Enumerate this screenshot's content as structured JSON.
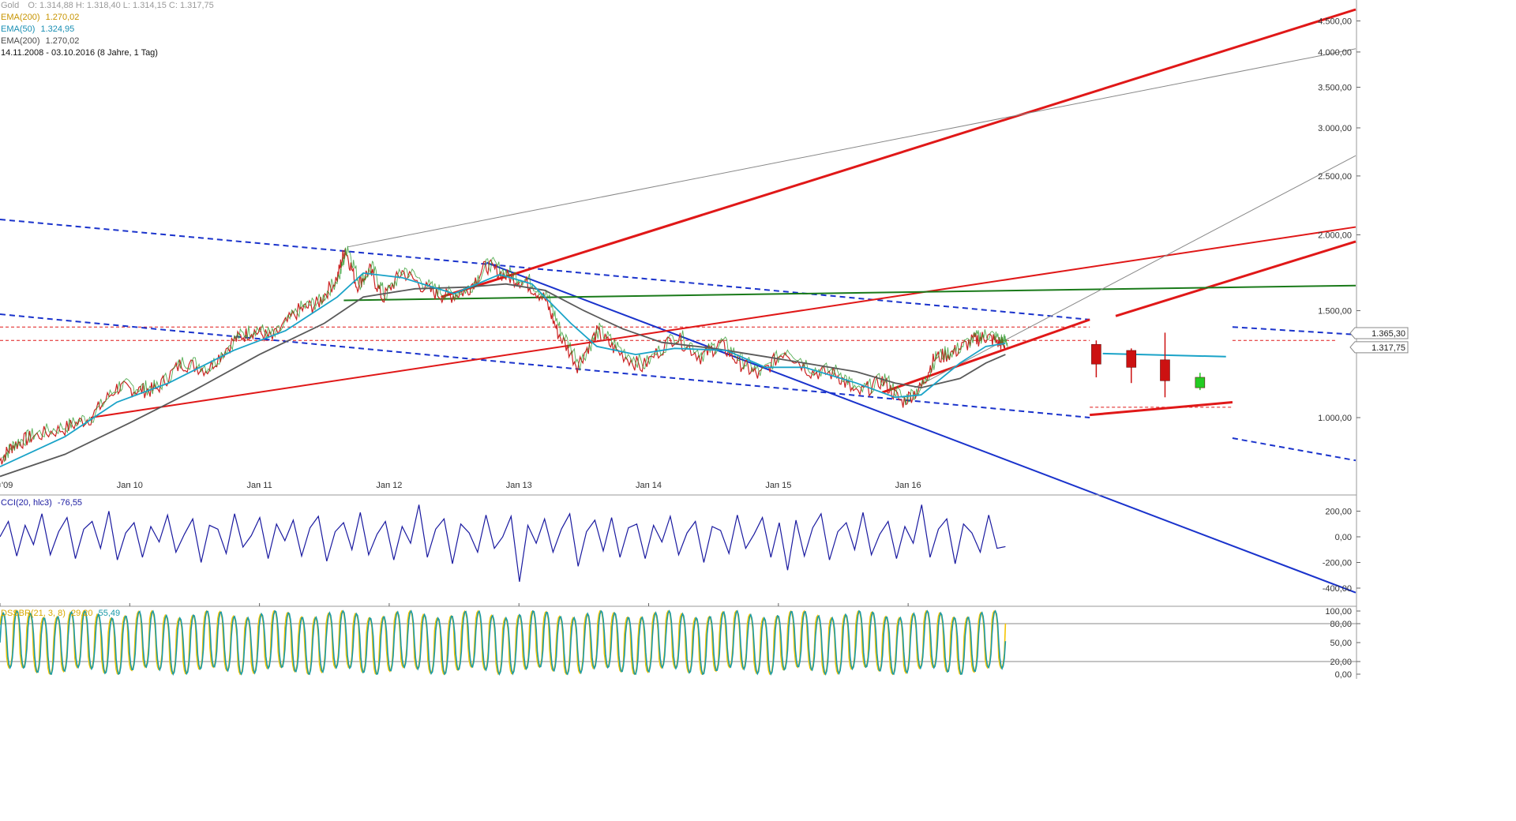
{
  "header": {
    "line1": {
      "symbol": "Gold",
      "ohlc": "O: 1.314,88   H: 1.318,40   L: 1.314,15   C: 1.317,75"
    },
    "line2": {
      "label": "EMA(200)",
      "value": "1.270,02",
      "color": "#f5b800"
    },
    "line3": {
      "label": "EMA(50)",
      "value": "1.324,95",
      "color": "#1aa3c8"
    },
    "line4": {
      "label": "EMA(200)",
      "value": "1.270,02",
      "color": "#5a5a5a"
    },
    "line5": {
      "text": "14.11.2008 - 03.10.2016 (8 Jahre, 1 Tag)"
    }
  },
  "indicators": {
    "cci": {
      "label": "CCI(20, hlc3)",
      "value": "-76,55",
      "color": "#1a1aa0"
    },
    "dssbr": {
      "label": "DSSBR(21, 3, 8)",
      "value1": "29,20",
      "value2": "55,49",
      "color1": "#f5c400",
      "color2": "#1a9aa8"
    }
  },
  "chart_data": [
    {
      "type": "line",
      "panel": "price",
      "scale": "log",
      "ylim": [
        780,
        4700
      ],
      "yticks": [
        "4.500,00",
        "4.000,00",
        "3.500,00",
        "3.000,00",
        "2.500,00",
        "2.000,00",
        "1.500,00",
        "1.000,00"
      ],
      "ytick_values": [
        4500,
        4000,
        3500,
        3000,
        2500,
        2000,
        1500,
        1000
      ],
      "xticks": [
        "'09",
        "Jan 10",
        "Jan 11",
        "Jan 12",
        "Jan 13",
        "Jan 14",
        "Jan 15",
        "Jan 16"
      ],
      "xtick_years": [
        2009,
        2010,
        2011,
        2012,
        2013,
        2014,
        2015,
        2016
      ],
      "xlim": [
        2009.0,
        2019.45
      ],
      "price_tags": [
        {
          "label": "1.365,30",
          "value": 1365.3
        },
        {
          "label": "1.317,75",
          "value": 1317.75
        }
      ],
      "price_path": [
        [
          2009.0,
          850
        ],
        [
          2009.1,
          900
        ],
        [
          2009.25,
          930
        ],
        [
          2009.5,
          960
        ],
        [
          2009.7,
          1000
        ],
        [
          2009.9,
          1120
        ],
        [
          2010.05,
          1110
        ],
        [
          2010.2,
          1110
        ],
        [
          2010.4,
          1230
        ],
        [
          2010.6,
          1200
        ],
        [
          2010.8,
          1340
        ],
        [
          2010.95,
          1390
        ],
        [
          2011.1,
          1350
        ],
        [
          2011.3,
          1500
        ],
        [
          2011.45,
          1540
        ],
        [
          2011.6,
          1700
        ],
        [
          2011.66,
          1900
        ],
        [
          2011.75,
          1650
        ],
        [
          2011.85,
          1750
        ],
        [
          2011.95,
          1570
        ],
        [
          2012.1,
          1740
        ],
        [
          2012.3,
          1620
        ],
        [
          2012.45,
          1580
        ],
        [
          2012.6,
          1620
        ],
        [
          2012.75,
          1780
        ],
        [
          2012.9,
          1710
        ],
        [
          2013.05,
          1670
        ],
        [
          2013.2,
          1570
        ],
        [
          2013.3,
          1380
        ],
        [
          2013.45,
          1220
        ],
        [
          2013.6,
          1380
        ],
        [
          2013.75,
          1290
        ],
        [
          2013.95,
          1210
        ],
        [
          2014.2,
          1360
        ],
        [
          2014.4,
          1260
        ],
        [
          2014.55,
          1320
        ],
        [
          2014.7,
          1230
        ],
        [
          2014.85,
          1170
        ],
        [
          2015.05,
          1290
        ],
        [
          2015.25,
          1190
        ],
        [
          2015.45,
          1180
        ],
        [
          2015.6,
          1090
        ],
        [
          2015.8,
          1150
        ],
        [
          2015.95,
          1060
        ],
        [
          2016.1,
          1120
        ],
        [
          2016.2,
          1250
        ],
        [
          2016.35,
          1280
        ],
        [
          2016.5,
          1340
        ],
        [
          2016.6,
          1360
        ],
        [
          2016.7,
          1330
        ],
        [
          2016.75,
          1318
        ]
      ],
      "ema50_path": [
        [
          2009.0,
          830
        ],
        [
          2009.5,
          930
        ],
        [
          2009.9,
          1060
        ],
        [
          2010.3,
          1140
        ],
        [
          2010.8,
          1290
        ],
        [
          2011.2,
          1390
        ],
        [
          2011.6,
          1580
        ],
        [
          2011.8,
          1730
        ],
        [
          2012.1,
          1700
        ],
        [
          2012.5,
          1600
        ],
        [
          2012.85,
          1720
        ],
        [
          2013.1,
          1660
        ],
        [
          2013.4,
          1430
        ],
        [
          2013.6,
          1310
        ],
        [
          2013.9,
          1270
        ],
        [
          2014.2,
          1300
        ],
        [
          2014.6,
          1290
        ],
        [
          2014.9,
          1210
        ],
        [
          2015.2,
          1210
        ],
        [
          2015.6,
          1140
        ],
        [
          2015.9,
          1080
        ],
        [
          2016.1,
          1090
        ],
        [
          2016.4,
          1230
        ],
        [
          2016.6,
          1310
        ],
        [
          2016.75,
          1325
        ]
      ],
      "ema200_path": [
        [
          2009.0,
          800
        ],
        [
          2009.5,
          870
        ],
        [
          2010.0,
          980
        ],
        [
          2010.5,
          1110
        ],
        [
          2011.0,
          1270
        ],
        [
          2011.5,
          1430
        ],
        [
          2011.8,
          1580
        ],
        [
          2012.2,
          1630
        ],
        [
          2012.6,
          1640
        ],
        [
          2012.9,
          1660
        ],
        [
          2013.2,
          1620
        ],
        [
          2013.5,
          1500
        ],
        [
          2013.8,
          1400
        ],
        [
          2014.1,
          1330
        ],
        [
          2014.5,
          1300
        ],
        [
          2014.9,
          1260
        ],
        [
          2015.3,
          1220
        ],
        [
          2015.6,
          1190
        ],
        [
          2015.9,
          1140
        ],
        [
          2016.1,
          1120
        ],
        [
          2016.4,
          1160
        ],
        [
          2016.6,
          1230
        ],
        [
          2016.75,
          1270
        ]
      ],
      "projection_candles": [
        {
          "x": 2017.45,
          "open": 1320,
          "close": 1225,
          "high": 1340,
          "low": 1165,
          "color": "#cc1111"
        },
        {
          "x": 2017.72,
          "open": 1290,
          "close": 1210,
          "high": 1300,
          "low": 1140,
          "color": "#cc1111"
        },
        {
          "x": 2017.98,
          "open": 1245,
          "close": 1150,
          "high": 1380,
          "low": 1080,
          "color": "#cc1111"
        },
        {
          "x": 2018.25,
          "open": 1120,
          "close": 1165,
          "high": 1185,
          "low": 1110,
          "color": "#22cc22"
        }
      ],
      "trendlines": [
        {
          "from": [
            2009.0,
            2120
          ],
          "to": [
            2017.4,
            1450
          ],
          "color": "#1a33cc",
          "dash": true,
          "width": 2
        },
        {
          "from": [
            2009.0,
            1480
          ],
          "to": [
            2017.4,
            1000
          ],
          "color": "#1a33cc",
          "dash": true,
          "width": 2
        },
        {
          "from": [
            2018.5,
            1410
          ],
          "to": [
            2019.45,
            1370
          ],
          "color": "#1a33cc",
          "dash": true,
          "width": 2
        },
        {
          "from": [
            2018.5,
            925
          ],
          "to": [
            2019.45,
            850
          ],
          "color": "#1a33cc",
          "dash": true,
          "width": 2
        },
        {
          "from": [
            2012.75,
            1800
          ],
          "to": [
            2019.45,
            515
          ],
          "color": "#1a33cc",
          "dash": false,
          "width": 2
        },
        {
          "from": [
            2009.7,
            1000
          ],
          "to": [
            2019.45,
            2060
          ],
          "color": "#e01818",
          "dash": false,
          "width": 2
        },
        {
          "from": [
            2012.4,
            1580
          ],
          "to": [
            2019.45,
            4700
          ],
          "color": "#e01818",
          "dash": false,
          "width": 3
        },
        {
          "from": [
            2015.8,
            1100
          ],
          "to": [
            2017.4,
            1450
          ],
          "color": "#e01818",
          "dash": false,
          "width": 3
        },
        {
          "from": [
            2017.4,
            1010
          ],
          "to": [
            2018.5,
            1060
          ],
          "color": "#e01818",
          "dash": false,
          "width": 3
        },
        {
          "from": [
            2017.6,
            1470
          ],
          "to": [
            2019.45,
            1950
          ],
          "color": "#e01818",
          "dash": false,
          "width": 3
        },
        {
          "from": [
            2011.65,
            1560
          ],
          "to": [
            2019.45,
            1650
          ],
          "color": "#1a7a1a",
          "dash": false,
          "width": 2
        },
        {
          "from": [
            2011.68,
            1910
          ],
          "to": [
            2019.45,
            4050
          ],
          "color": "#888888",
          "dash": false,
          "width": 1
        },
        {
          "from": [
            2016.05,
            1120
          ],
          "to": [
            2019.45,
            2700
          ],
          "color": "#888888",
          "dash": false,
          "width": 1
        },
        {
          "from": [
            2017.5,
            1275
          ],
          "to": [
            2018.45,
            1260
          ],
          "color": "#1aa3c8",
          "dash": false,
          "width": 2
        }
      ],
      "hlines": [
        {
          "y": 1410,
          "from": 2009.0,
          "to": 2017.4,
          "color": "#e01818"
        },
        {
          "y": 1340,
          "from": 2009.0,
          "to": 2017.4,
          "color": "#e01818"
        },
        {
          "y": 1340,
          "from": 2018.5,
          "to": 2019.3,
          "color": "#e01818"
        },
        {
          "y": 1040,
          "from": 2017.4,
          "to": 2018.5,
          "color": "#e01818"
        }
      ]
    },
    {
      "type": "line",
      "panel": "cci",
      "ylim": [
        -480,
        320
      ],
      "yticks": [
        "200,00",
        "0,00",
        "-200,00",
        "-400,00"
      ],
      "ytick_values": [
        200,
        0,
        -200,
        -400
      ],
      "series": [
        {
          "values": [
            0,
            120,
            -150,
            90,
            -60,
            180,
            -140,
            40,
            150,
            -170,
            60,
            120,
            -90,
            200,
            -180,
            30,
            110,
            -160,
            80,
            -40,
            170,
            -120,
            20,
            140,
            -200,
            90,
            60,
            -130,
            180,
            -80,
            10,
            150,
            -170,
            100,
            -30,
            130,
            -150,
            70,
            160,
            -190,
            40,
            110,
            -100,
            190,
            -140,
            20,
            120,
            -180,
            80,
            -50,
            250,
            -160,
            60,
            140,
            -210,
            100,
            30,
            -120,
            170,
            -90,
            0,
            160,
            -350,
            90,
            -50,
            140,
            -120,
            60,
            180,
            -230,
            40,
            130,
            -110,
            150,
            -160,
            70,
            100,
            -170,
            90,
            -40,
            160,
            -140,
            30,
            120,
            -200,
            80,
            50,
            -130,
            170,
            -90,
            20,
            150,
            -160,
            110,
            -260,
            130,
            -150,
            70,
            180,
            -180,
            40,
            110,
            -100,
            190,
            -140,
            20,
            120,
            -170,
            80,
            -50,
            250,
            -160,
            60,
            140,
            -210,
            100,
            30,
            -120,
            170,
            -90,
            -76
          ]
        }
      ]
    },
    {
      "type": "line",
      "panel": "dssbr",
      "ylim": [
        0,
        100
      ],
      "yticks": [
        "100,00",
        "80,00",
        "50,00",
        "20,00",
        "0,00"
      ],
      "ytick_values": [
        100,
        80,
        50,
        20,
        0
      ],
      "hline_values": [
        80,
        20
      ],
      "cycles": 74,
      "last_values": [
        29.2,
        55.49
      ]
    }
  ]
}
